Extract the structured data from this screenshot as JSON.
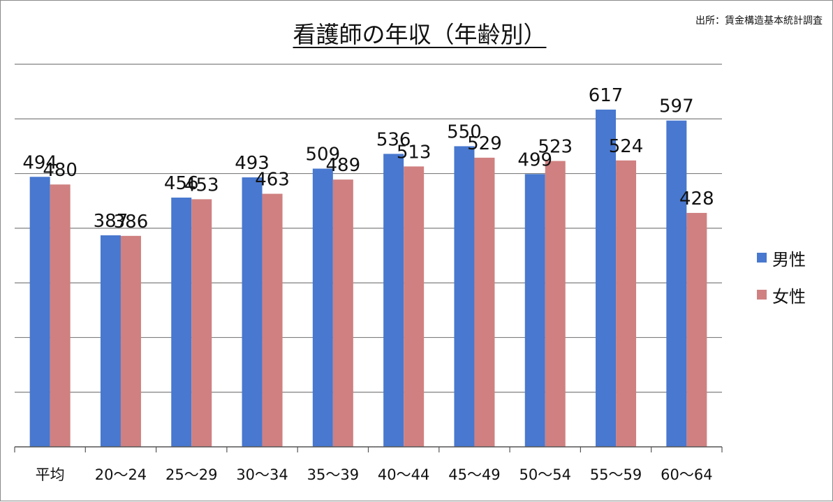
{
  "chart_data": {
    "type": "bar",
    "title": "看護師の年収（年齢別）",
    "source": "出所：賃金構造基本統計調査",
    "categories": [
      "平均",
      "20〜24",
      "25〜29",
      "30〜34",
      "35〜39",
      "40〜44",
      "45〜49",
      "50〜54",
      "55〜59",
      "60〜64"
    ],
    "series": [
      {
        "name": "男性",
        "color": "#4878cf",
        "values": [
          494,
          387,
          456,
          493,
          509,
          536,
          550,
          499,
          617,
          597
        ]
      },
      {
        "name": "女性",
        "color": "#d08080",
        "values": [
          480,
          386,
          453,
          463,
          489,
          513,
          529,
          523,
          524,
          428
        ]
      }
    ],
    "ylim": [
      0,
      700
    ],
    "ytick_step": 100,
    "grid": true,
    "ytick_labels_shown": false,
    "legend_position": "right"
  }
}
